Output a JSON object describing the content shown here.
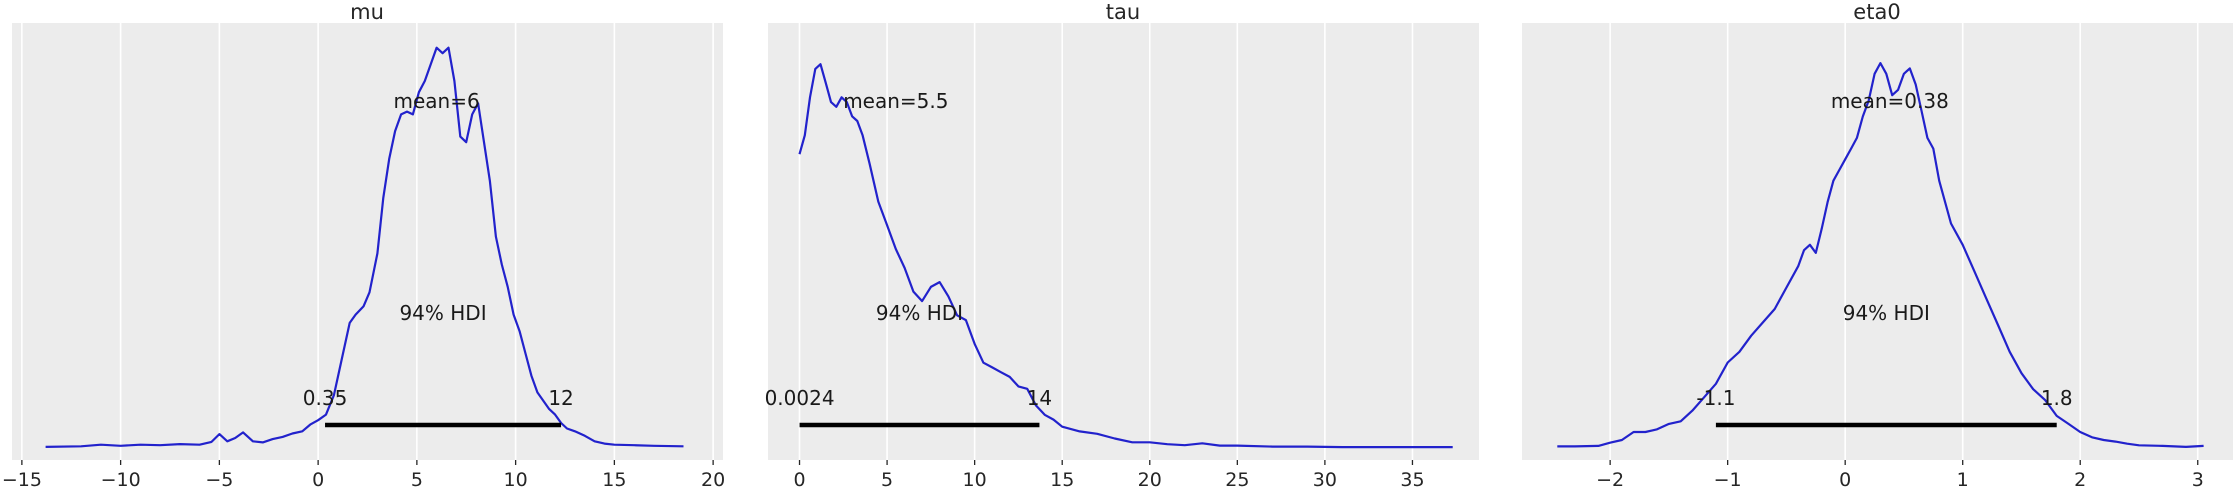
{
  "chart_data": [
    {
      "type": "area",
      "title": "mu",
      "xlim": [
        -15.5,
        20.5
      ],
      "ticks": [
        -15,
        -10,
        -5,
        0,
        5,
        10,
        15,
        20
      ],
      "tick_labels": [
        "−15",
        "−10",
        "−5",
        "0",
        "5",
        "10",
        "15",
        "20"
      ],
      "grid": true,
      "mean_label": "mean=6",
      "hdi_label": "94% HDI",
      "hdi": [
        0.35,
        12.3
      ],
      "hdi_low_label": "0.35",
      "hdi_high_label": "12",
      "series": [
        {
          "x": [
            -13.8,
            -12,
            -11,
            -10,
            -9,
            -8,
            -7,
            -6,
            -5.4,
            -5,
            -4.6,
            -4.2,
            -3.8,
            -3.3,
            -2.8,
            -2.3,
            -1.8,
            -1.3,
            -0.8,
            -0.4,
            0,
            0.4,
            0.8,
            1.2,
            1.6,
            1.9,
            2.3,
            2.6,
            3,
            3.3,
            3.6,
            3.9,
            4.2,
            4.5,
            4.8,
            5.1,
            5.4,
            5.7,
            6,
            6.3,
            6.6,
            6.9,
            7.2,
            7.5,
            7.8,
            8.1,
            8.4,
            8.7,
            9,
            9.3,
            9.6,
            9.9,
            10.2,
            10.5,
            10.8,
            11.1,
            11.4,
            11.7,
            12,
            12.3,
            12.6,
            13,
            13.5,
            14,
            14.5,
            15,
            16,
            17,
            18.5
          ],
          "y": [
            0.002,
            0.003,
            0.006,
            0.004,
            0.006,
            0.005,
            0.007,
            0.006,
            0.011,
            0.025,
            0.012,
            0.018,
            0.028,
            0.012,
            0.01,
            0.016,
            0.02,
            0.026,
            0.03,
            0.042,
            0.05,
            0.06,
            0.095,
            0.16,
            0.225,
            0.24,
            0.255,
            0.28,
            0.35,
            0.45,
            0.52,
            0.57,
            0.6,
            0.605,
            0.6,
            0.64,
            0.66,
            0.69,
            0.72,
            0.71,
            0.72,
            0.66,
            0.56,
            0.55,
            0.6,
            0.62,
            0.55,
            0.48,
            0.38,
            0.33,
            0.29,
            0.24,
            0.21,
            0.17,
            0.13,
            0.1,
            0.085,
            0.07,
            0.06,
            0.045,
            0.035,
            0.03,
            0.022,
            0.012,
            0.008,
            0.006,
            0.005,
            0.004,
            0.003
          ]
        }
      ]
    },
    {
      "type": "area",
      "title": "tau",
      "xlim": [
        -1.8,
        38.8
      ],
      "ticks": [
        0,
        5,
        10,
        15,
        20,
        25,
        30,
        35
      ],
      "tick_labels": [
        "0",
        "5",
        "10",
        "15",
        "20",
        "25",
        "30",
        "35"
      ],
      "grid": true,
      "mean_label": "mean=5.5",
      "hdi_label": "94% HDI",
      "hdi": [
        0.0024,
        13.7
      ],
      "hdi_low_label": "0.0024",
      "hdi_high_label": "14",
      "series": [
        {
          "x": [
            0,
            0.3,
            0.6,
            0.9,
            1.2,
            1.5,
            1.8,
            2.1,
            2.4,
            2.7,
            3,
            3.3,
            3.6,
            4,
            4.5,
            5,
            5.5,
            6,
            6.5,
            7,
            7.5,
            8,
            8.5,
            9,
            9.5,
            10,
            10.5,
            11,
            11.5,
            12,
            12.5,
            13,
            13.5,
            14,
            14.5,
            15,
            16,
            17,
            18,
            19,
            20,
            21,
            22,
            23,
            24,
            25,
            27,
            29,
            31,
            33,
            35,
            37.3
          ],
          "y": [
            0.62,
            0.66,
            0.74,
            0.8,
            0.81,
            0.77,
            0.73,
            0.72,
            0.74,
            0.73,
            0.7,
            0.69,
            0.66,
            0.6,
            0.52,
            0.47,
            0.42,
            0.38,
            0.33,
            0.31,
            0.34,
            0.35,
            0.32,
            0.28,
            0.27,
            0.22,
            0.18,
            0.17,
            0.16,
            0.15,
            0.13,
            0.125,
            0.09,
            0.07,
            0.06,
            0.045,
            0.035,
            0.03,
            0.02,
            0.012,
            0.012,
            0.008,
            0.006,
            0.01,
            0.005,
            0.005,
            0.003,
            0.003,
            0.002,
            0.002,
            0.002,
            0.002
          ]
        }
      ]
    },
    {
      "type": "area",
      "title": "eta0",
      "xlim": [
        -2.75,
        3.3
      ],
      "ticks": [
        -2,
        -1,
        0,
        1,
        2,
        3
      ],
      "tick_labels": [
        "−2",
        "−1",
        "0",
        "1",
        "2",
        "3"
      ],
      "grid": true,
      "mean_label": "mean=0.38",
      "hdi_label": "94% HDI",
      "hdi": [
        -1.1,
        1.8
      ],
      "hdi_low_label": "-1.1",
      "hdi_high_label": "1.8",
      "series": [
        {
          "x": [
            -2.45,
            -2.3,
            -2.1,
            -2,
            -1.9,
            -1.8,
            -1.7,
            -1.6,
            -1.5,
            -1.4,
            -1.3,
            -1.2,
            -1.1,
            -1,
            -0.9,
            -0.8,
            -0.7,
            -0.6,
            -0.5,
            -0.4,
            -0.35,
            -0.3,
            -0.25,
            -0.2,
            -0.15,
            -0.1,
            -0.05,
            0,
            0.05,
            0.1,
            0.15,
            0.2,
            0.25,
            0.3,
            0.35,
            0.4,
            0.45,
            0.5,
            0.55,
            0.6,
            0.65,
            0.7,
            0.75,
            0.8,
            0.9,
            1,
            1.1,
            1.2,
            1.3,
            1.4,
            1.5,
            1.6,
            1.7,
            1.8,
            1.9,
            2,
            2.1,
            2.2,
            2.3,
            2.4,
            2.5,
            2.7,
            2.9,
            3.05
          ],
          "y": [
            0.003,
            0.003,
            0.004,
            0.01,
            0.015,
            0.03,
            0.03,
            0.035,
            0.045,
            0.05,
            0.07,
            0.095,
            0.12,
            0.16,
            0.18,
            0.21,
            0.235,
            0.26,
            0.3,
            0.34,
            0.37,
            0.38,
            0.365,
            0.41,
            0.46,
            0.5,
            0.52,
            0.54,
            0.56,
            0.58,
            0.62,
            0.65,
            0.7,
            0.72,
            0.7,
            0.66,
            0.67,
            0.7,
            0.71,
            0.68,
            0.63,
            0.58,
            0.56,
            0.5,
            0.42,
            0.38,
            0.33,
            0.28,
            0.23,
            0.18,
            0.14,
            0.11,
            0.09,
            0.06,
            0.045,
            0.03,
            0.02,
            0.015,
            0.012,
            0.008,
            0.005,
            0.004,
            0.002,
            0.004
          ]
        }
      ]
    }
  ]
}
